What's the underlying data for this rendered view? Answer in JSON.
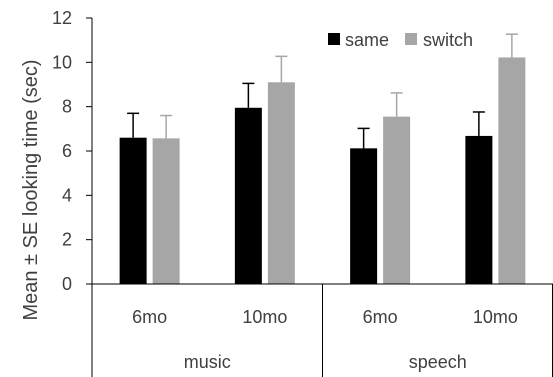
{
  "chart_data": {
    "type": "bar",
    "title": "",
    "ylabel": "Mean ± SE looking time (sec)",
    "xlabel": "",
    "ylim": [
      0,
      12
    ],
    "yticks": [
      "0",
      "2",
      "4",
      "6",
      "8",
      "10",
      "12"
    ],
    "groups": [
      {
        "label": "music",
        "subcategories": [
          "6mo",
          "10mo"
        ]
      },
      {
        "label": "speech",
        "subcategories": [
          "6mo",
          "10mo"
        ]
      }
    ],
    "categories": [
      "music 6mo",
      "music 10mo",
      "speech 6mo",
      "speech 10mo"
    ],
    "series": [
      {
        "name": "same",
        "color": "#000000",
        "values": [
          6.6,
          7.95,
          6.12,
          6.68
        ],
        "se": [
          1.1,
          1.1,
          0.9,
          1.08
        ]
      },
      {
        "name": "switch",
        "color": "#a6a6a6",
        "values": [
          6.57,
          9.1,
          7.55,
          10.22
        ],
        "se": [
          1.03,
          1.17,
          1.07,
          1.05
        ]
      }
    ],
    "legend_position": "top-right",
    "grid": false
  }
}
